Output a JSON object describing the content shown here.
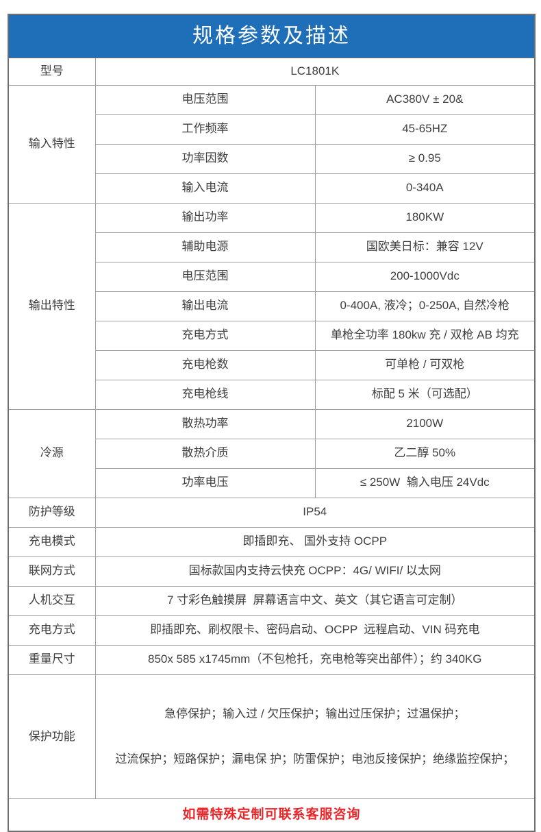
{
  "title": "规格参数及描述",
  "model": {
    "label": "型号",
    "value": "LC1801K"
  },
  "groups": [
    {
      "name": "输入特性",
      "rows": [
        {
          "label": "电压范围",
          "value": "AC380V ± 20&"
        },
        {
          "label": "工作频率",
          "value": "45-65HZ"
        },
        {
          "label": "功率因数",
          "value": "≥ 0.95"
        },
        {
          "label": "输入电流",
          "value": "0-340A"
        }
      ]
    },
    {
      "name": "输出特性",
      "rows": [
        {
          "label": "输出功率",
          "value": "180KW"
        },
        {
          "label": "辅助电源",
          "value": "国欧美日标：兼容 12V"
        },
        {
          "label": "电压范围",
          "value": "200-1000Vdc"
        },
        {
          "label": "输出电流",
          "value": "0-400A, 液冷；0-250A, 自然冷枪"
        },
        {
          "label": "充电方式",
          "value": "单枪全功率 180kw 充 / 双枪 AB 均充"
        },
        {
          "label": "充电枪数",
          "value": "可单枪 / 可双枪"
        },
        {
          "label": "充电枪线",
          "value": "标配 5 米（可选配）"
        }
      ]
    },
    {
      "name": "冷源",
      "rows": [
        {
          "label": "散热功率",
          "value": "2100W"
        },
        {
          "label": "散热介质",
          "value": "乙二醇 50%"
        },
        {
          "label": "功率电压",
          "value": "≤ 250W  输入电压 24Vdc"
        }
      ]
    }
  ],
  "simple_rows": [
    {
      "label": "防护等级",
      "value": "IP54"
    },
    {
      "label": "充电模式",
      "value": "即插即充、 国外支持 OCPP"
    },
    {
      "label": "联网方式",
      "value": "国标款国内支持云快充 OCPP：4G/ WIFI/ 以太网"
    },
    {
      "label": "人机交互",
      "value": "7 寸彩色触摸屏  屏幕语言中文、英文（其它语言可定制）"
    },
    {
      "label": "充电方式",
      "value": "即插即充、刷权限卡、密码启动、OCPP  远程启动、VIN 码充电"
    },
    {
      "label": "重量尺寸",
      "value": "850x 585 x1745mm（不包枪托，充电枪等突出部件）；约 340KG"
    }
  ],
  "protection": {
    "label": "保护功能",
    "lines": [
      "急停保护；输入过 / 欠压保护；输出过压保护；过温保护；",
      "过流保护；短路保护；漏电保 护；防雷保护；电池反接保护；绝缘监控保护；"
    ]
  },
  "footer": {
    "note": "如需特殊定制可联系客服咨询"
  },
  "colors": {
    "header_bg": "#1F6FB8",
    "header_text": "#FFFFFF",
    "footer_text": "#E8272A",
    "body_text": "#3F3F3F",
    "grid_border": "#9E9E9E",
    "outer_border": "#6F6F6F"
  }
}
